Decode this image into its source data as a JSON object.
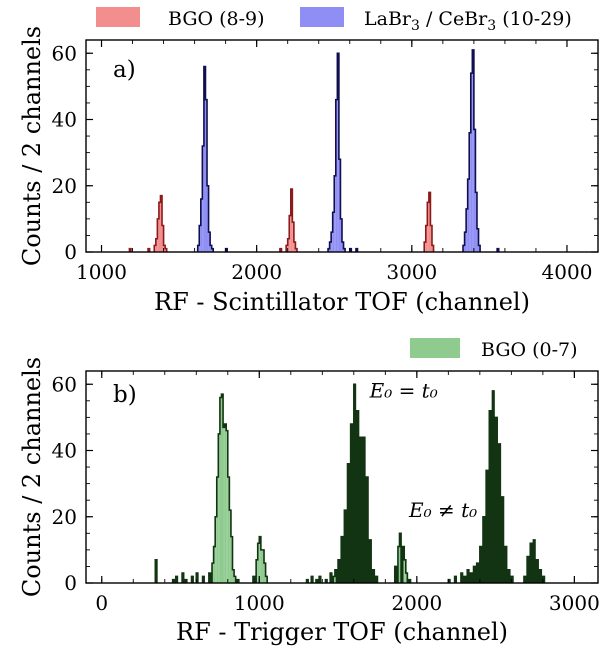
{
  "chart_data": [
    {
      "type": "histogram",
      "panel_label": "a)",
      "xlabel": "RF - Scintillator TOF (channel)",
      "ylabel": "Counts / 2 channels",
      "xlim": [
        900,
        4200
      ],
      "ylim": [
        0,
        64
      ],
      "xticks": [
        1000,
        2000,
        3000,
        4000
      ],
      "yticks": [
        0,
        20,
        40,
        60
      ],
      "legend_position": "top, outside",
      "series": [
        {
          "name": "BGO (8-9)",
          "color": "#f28e8e",
          "edge": "#8b1a1a",
          "bins": [
            [
              1180,
              1
            ],
            [
              1300,
              1
            ],
            [
              1340,
              2
            ],
            [
              1350,
              4
            ],
            [
              1360,
              10
            ],
            [
              1370,
              15
            ],
            [
              1380,
              17
            ],
            [
              1390,
              8
            ],
            [
              1400,
              2
            ],
            [
              1410,
              1
            ],
            [
              2150,
              1
            ],
            [
              2190,
              2
            ],
            [
              2200,
              4
            ],
            [
              2210,
              11
            ],
            [
              2220,
              19
            ],
            [
              2230,
              9
            ],
            [
              2240,
              3
            ],
            [
              2250,
              1
            ],
            [
              3080,
              3
            ],
            [
              3090,
              8
            ],
            [
              3100,
              15
            ],
            [
              3110,
              18
            ],
            [
              3120,
              8
            ],
            [
              3130,
              2
            ]
          ]
        },
        {
          "name": "LaBr3 / CeBr3 (10-29)",
          "color": "#8e8ef5",
          "edge": "#101050",
          "bins": [
            [
              1620,
              2
            ],
            [
              1630,
              8
            ],
            [
              1640,
              16
            ],
            [
              1650,
              32
            ],
            [
              1660,
              56
            ],
            [
              1670,
              46
            ],
            [
              1680,
              20
            ],
            [
              1690,
              6
            ],
            [
              1700,
              2
            ],
            [
              1710,
              1
            ],
            [
              1800,
              1
            ],
            [
              2460,
              1
            ],
            [
              2470,
              3
            ],
            [
              2480,
              6
            ],
            [
              2490,
              12
            ],
            [
              2500,
              23
            ],
            [
              2510,
              46
            ],
            [
              2520,
              60
            ],
            [
              2530,
              28
            ],
            [
              2540,
              10
            ],
            [
              2550,
              3
            ],
            [
              2560,
              1
            ],
            [
              2600,
              1
            ],
            [
              2640,
              1
            ],
            [
              3330,
              2
            ],
            [
              3340,
              6
            ],
            [
              3350,
              13
            ],
            [
              3360,
              22
            ],
            [
              3370,
              36
            ],
            [
              3380,
              54
            ],
            [
              3390,
              61
            ],
            [
              3400,
              37
            ],
            [
              3410,
              18
            ],
            [
              3420,
              7
            ],
            [
              3430,
              2
            ],
            [
              3550,
              1
            ]
          ]
        }
      ]
    },
    {
      "type": "histogram",
      "panel_label": "b)",
      "xlabel": "RF - Trigger TOF (channel)",
      "ylabel": "Counts / 2 channels",
      "xlim": [
        -100,
        3150
      ],
      "ylim": [
        0,
        64
      ],
      "xticks": [
        0,
        1000,
        2000,
        3000
      ],
      "yticks": [
        0,
        20,
        40,
        60
      ],
      "legend_position": "top-right, outside",
      "annotations": [
        {
          "text": "E₀ = t₀",
          "x": 1700,
          "y": 56
        },
        {
          "text": "E₀ ≠ t₀",
          "x": 1950,
          "y": 20
        }
      ],
      "series": [
        {
          "name": "BGO (0-7)",
          "color": "#8fca8f",
          "edge": "#123412",
          "bins": [
            [
              340,
              7
            ],
            [
              450,
              1
            ],
            [
              470,
              2
            ],
            [
              510,
              3
            ],
            [
              530,
              1
            ],
            [
              570,
              2
            ],
            [
              600,
              3
            ],
            [
              640,
              2
            ],
            [
              680,
              3
            ],
            [
              700,
              6
            ],
            [
              710,
              11
            ],
            [
              720,
              20
            ],
            [
              730,
              32
            ],
            [
              740,
              45
            ],
            [
              750,
              56
            ],
            [
              760,
              57
            ],
            [
              770,
              47
            ],
            [
              780,
              48
            ],
            [
              790,
              46
            ],
            [
              800,
              32
            ],
            [
              810,
              22
            ],
            [
              820,
              14
            ],
            [
              830,
              4
            ],
            [
              840,
              2
            ],
            [
              860,
              1
            ],
            [
              960,
              2
            ],
            [
              980,
              7
            ],
            [
              990,
              12
            ],
            [
              1000,
              14
            ],
            [
              1010,
              10
            ],
            [
              1020,
              10
            ],
            [
              1030,
              6
            ],
            [
              1040,
              2
            ],
            [
              1300,
              1
            ],
            [
              1330,
              2
            ],
            [
              1360,
              1
            ],
            [
              1380,
              2
            ],
            [
              1420,
              1
            ],
            [
              1450,
              3
            ],
            [
              1470,
              2
            ],
            [
              1480,
              4
            ],
            [
              1500,
              7
            ],
            [
              1520,
              14
            ],
            [
              1540,
              22
            ],
            [
              1560,
              36
            ],
            [
              1580,
              48
            ],
            [
              1600,
              60
            ],
            [
              1620,
              52
            ],
            [
              1640,
              44
            ],
            [
              1660,
              44
            ],
            [
              1680,
              32
            ],
            [
              1700,
              13
            ],
            [
              1720,
              4
            ],
            [
              1740,
              2
            ],
            [
              1860,
              5
            ],
            [
              1880,
              11
            ],
            [
              1890,
              15
            ],
            [
              1910,
              11
            ],
            [
              1920,
              7
            ],
            [
              1930,
              3
            ],
            [
              1950,
              1
            ],
            [
              2200,
              1
            ],
            [
              2240,
              2
            ],
            [
              2280,
              3
            ],
            [
              2300,
              2
            ],
            [
              2320,
              4
            ],
            [
              2340,
              3
            ],
            [
              2360,
              5
            ],
            [
              2380,
              6
            ],
            [
              2400,
              11
            ],
            [
              2420,
              20
            ],
            [
              2440,
              34
            ],
            [
              2460,
              52
            ],
            [
              2480,
              58
            ],
            [
              2500,
              50
            ],
            [
              2520,
              42
            ],
            [
              2540,
              26
            ],
            [
              2560,
              11
            ],
            [
              2580,
              4
            ],
            [
              2600,
              2
            ],
            [
              2680,
              2
            ],
            [
              2700,
              8
            ],
            [
              2720,
              12
            ],
            [
              2740,
              13
            ],
            [
              2760,
              7
            ],
            [
              2780,
              4
            ],
            [
              2800,
              2
            ]
          ]
        }
      ]
    }
  ]
}
